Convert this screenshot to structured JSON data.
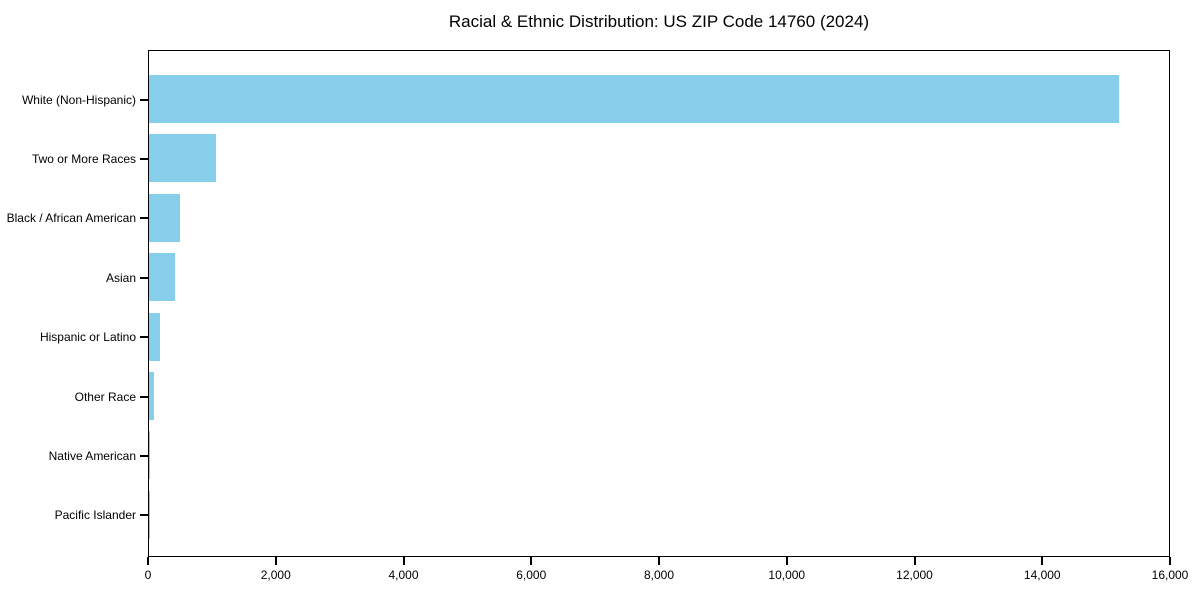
{
  "chart_data": {
    "type": "bar",
    "orientation": "horizontal",
    "title": "Racial & Ethnic Distribution: US ZIP Code 14760 (2024)",
    "xlabel": "",
    "ylabel": "",
    "categories": [
      "White (Non-Hispanic)",
      "Two or More Races",
      "Black / African American",
      "Asian",
      "Hispanic or Latino",
      "Other Race",
      "Native American",
      "Pacific Islander"
    ],
    "values": [
      15220,
      1050,
      480,
      410,
      170,
      75,
      10,
      3
    ],
    "xlim": [
      0,
      16000
    ],
    "x_ticks": [
      0,
      2000,
      4000,
      6000,
      8000,
      10000,
      12000,
      14000,
      16000
    ],
    "x_tick_labels": [
      "0",
      "2,000",
      "4,000",
      "6,000",
      "8,000",
      "10,000",
      "12,000",
      "14,000",
      "16,000"
    ],
    "bar_color": "#87ceeb",
    "spine_color": "#000000",
    "text_color": "#000000",
    "grid": false,
    "legend": null
  }
}
